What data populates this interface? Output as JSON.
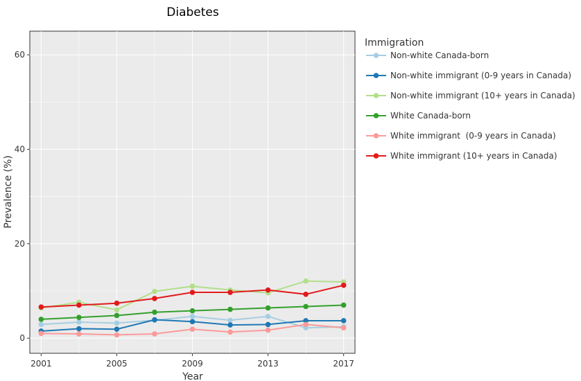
{
  "chart_data": {
    "type": "line",
    "title": "Diabetes",
    "xlabel": "Year",
    "ylabel": "Prevalence (%)",
    "xlim": [
      2000.4,
      2017.6
    ],
    "ylim": [
      -3.2,
      65
    ],
    "x_ticks": [
      2001,
      2005,
      2009,
      2013,
      2017
    ],
    "y_ticks": [
      0,
      20,
      40,
      60
    ],
    "grid": true,
    "legend_title": "Immigration",
    "legend_position": "right",
    "x": [
      2001,
      2003,
      2005,
      2007,
      2009,
      2011,
      2013,
      2015,
      2017
    ],
    "series": [
      {
        "name": "Non-white Canada-born",
        "color": "#a6cee3",
        "values": [
          2.9,
          3.4,
          3.2,
          3.8,
          4.6,
          3.8,
          4.6,
          2.2,
          2.4
        ]
      },
      {
        "name": "Non-white immigrant (0-9 years in Canada)",
        "color": "#1f78b4",
        "values": [
          1.5,
          2.0,
          1.9,
          3.9,
          3.5,
          2.8,
          2.9,
          3.7,
          3.7
        ]
      },
      {
        "name": "Non-white immigrant (10+ years in Canada)",
        "color": "#b2df8a",
        "values": [
          6.4,
          7.6,
          6.0,
          9.9,
          11.0,
          10.2,
          9.6,
          12.1,
          11.9
        ]
      },
      {
        "name": "White Canada-born",
        "color": "#33a02c",
        "values": [
          4.0,
          4.4,
          4.8,
          5.5,
          5.8,
          6.1,
          6.4,
          6.7,
          7.0
        ]
      },
      {
        "name": "White immigrant  (0-9 years in Canada)",
        "color": "#fb9a99",
        "values": [
          1.0,
          0.9,
          0.7,
          0.9,
          1.9,
          1.3,
          1.7,
          2.9,
          2.2
        ]
      },
      {
        "name": "White immigrant (10+ years in Canada)",
        "color": "#e31a1c",
        "values": [
          6.6,
          7.0,
          7.4,
          8.4,
          9.7,
          9.7,
          10.2,
          9.3,
          11.2
        ]
      }
    ]
  }
}
